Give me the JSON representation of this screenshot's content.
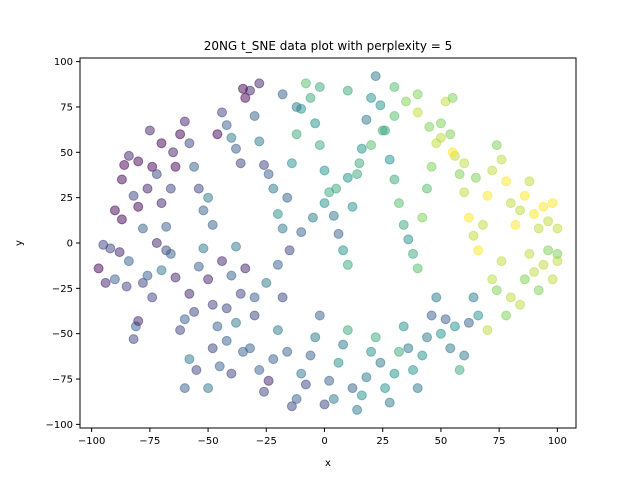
{
  "chart_data": {
    "type": "scatter",
    "title": "20NG t_SNE data plot with perplexity = 5",
    "xlabel": "x",
    "ylabel": "y",
    "xlim": [
      -105,
      108
    ],
    "ylim": [
      -102,
      102
    ],
    "xticks": [
      -100,
      -75,
      -50,
      -25,
      0,
      25,
      50,
      75,
      100
    ],
    "yticks": [
      -100,
      -75,
      -50,
      -25,
      0,
      25,
      50,
      75,
      100
    ],
    "xtick_labels": [
      "−100",
      "−75",
      "−50",
      "−25",
      "0",
      "25",
      "50",
      "75",
      "100"
    ],
    "ytick_labels": [
      "−100",
      "−75",
      "−50",
      "−25",
      "0",
      "25",
      "50",
      "75",
      "100"
    ],
    "grid": false,
    "colormap": "viridis",
    "marker_alpha": 0.5,
    "colors": {
      "viridis_stops": [
        "#440154",
        "#3b528b",
        "#21918c",
        "#5ec962",
        "#fde725"
      ]
    },
    "points": [
      [
        -97,
        -14,
        0.0
      ],
      [
        -94,
        -22,
        0.1
      ],
      [
        -92,
        -3,
        0.2
      ],
      [
        -90,
        -20,
        0.3
      ],
      [
        -88,
        -5,
        0.1
      ],
      [
        -87,
        13,
        0.0
      ],
      [
        -85,
        -24,
        0.2
      ],
      [
        -84,
        -10,
        0.3
      ],
      [
        -82,
        -53,
        0.2
      ],
      [
        -81,
        -46,
        0.3
      ],
      [
        -80,
        -43,
        0.1
      ],
      [
        -78,
        -22,
        0.2
      ],
      [
        -76,
        -18,
        0.3
      ],
      [
        -74,
        -30,
        0.2
      ],
      [
        -72,
        0,
        0.1
      ],
      [
        -70,
        -15,
        0.4
      ],
      [
        -68,
        -4,
        0.2
      ],
      [
        -66,
        -6,
        0.3
      ],
      [
        -64,
        -19,
        0.1
      ],
      [
        -62,
        -48,
        0.2
      ],
      [
        -60,
        -42,
        0.3
      ],
      [
        -58,
        -28,
        0.1
      ],
      [
        -56,
        -38,
        0.2
      ],
      [
        -54,
        -13,
        0.3
      ],
      [
        -52,
        -3,
        0.4
      ],
      [
        -50,
        -20,
        0.1
      ],
      [
        -48,
        -34,
        0.2
      ],
      [
        -46,
        -46,
        0.3
      ],
      [
        -44,
        -10,
        0.1
      ],
      [
        -42,
        -36,
        0.2
      ],
      [
        -40,
        -18,
        0.3
      ],
      [
        -38,
        -2,
        0.4
      ],
      [
        -36,
        -28,
        0.2
      ],
      [
        -34,
        -14,
        0.1
      ],
      [
        -32,
        -58,
        0.3
      ],
      [
        -30,
        -40,
        0.2
      ],
      [
        -28,
        -70,
        0.3
      ],
      [
        -26,
        -82,
        0.2
      ],
      [
        -24,
        -76,
        0.1
      ],
      [
        -22,
        -64,
        0.3
      ],
      [
        -20,
        -48,
        0.4
      ],
      [
        -18,
        -30,
        0.2
      ],
      [
        -16,
        -60,
        0.3
      ],
      [
        -14,
        -90,
        0.2
      ],
      [
        -12,
        -86,
        0.3
      ],
      [
        -10,
        -72,
        0.4
      ],
      [
        -8,
        -78,
        0.2
      ],
      [
        -6,
        -62,
        0.3
      ],
      [
        -4,
        -52,
        0.4
      ],
      [
        -2,
        -40,
        0.3
      ],
      [
        0,
        -89,
        0.2
      ],
      [
        2,
        -76,
        0.3
      ],
      [
        4,
        -86,
        0.4
      ],
      [
        6,
        -66,
        0.5
      ],
      [
        8,
        -56,
        0.4
      ],
      [
        10,
        -48,
        0.6
      ],
      [
        12,
        -80,
        0.3
      ],
      [
        14,
        -92,
        0.4
      ],
      [
        16,
        -84,
        0.5
      ],
      [
        18,
        -74,
        0.4
      ],
      [
        20,
        -60,
        0.5
      ],
      [
        22,
        -52,
        0.6
      ],
      [
        24,
        -66,
        0.4
      ],
      [
        26,
        -80,
        0.5
      ],
      [
        28,
        -88,
        0.4
      ],
      [
        30,
        -72,
        0.5
      ],
      [
        32,
        -60,
        0.6
      ],
      [
        34,
        -46,
        0.5
      ],
      [
        36,
        -58,
        0.4
      ],
      [
        38,
        -70,
        0.5
      ],
      [
        40,
        -80,
        0.4
      ],
      [
        42,
        -62,
        0.5
      ],
      [
        44,
        -52,
        0.4
      ],
      [
        46,
        -40,
        0.3
      ],
      [
        48,
        -30,
        0.4
      ],
      [
        50,
        -50,
        0.5
      ],
      [
        52,
        -42,
        0.3
      ],
      [
        54,
        -58,
        0.4
      ],
      [
        56,
        -46,
        0.5
      ],
      [
        58,
        -70,
        0.6
      ],
      [
        60,
        -62,
        0.4
      ],
      [
        62,
        -44,
        0.3
      ],
      [
        64,
        -30,
        0.4
      ],
      [
        66,
        -40,
        0.5
      ],
      [
        70,
        -48,
        0.9
      ],
      [
        72,
        -20,
        0.9
      ],
      [
        74,
        -26,
        0.8
      ],
      [
        76,
        -10,
        0.9
      ],
      [
        78,
        -40,
        0.8
      ],
      [
        80,
        -30,
        0.9
      ],
      [
        84,
        -34,
        0.9
      ],
      [
        86,
        -20,
        0.8
      ],
      [
        88,
        -6,
        0.9
      ],
      [
        90,
        -16,
        0.9
      ],
      [
        92,
        -26,
        0.8
      ],
      [
        94,
        -12,
        0.9
      ],
      [
        96,
        -4,
        0.8
      ],
      [
        98,
        -20,
        0.9
      ],
      [
        100,
        -10,
        0.9
      ],
      [
        100,
        -6,
        0.8
      ],
      [
        -95,
        -1,
        0.2
      ],
      [
        -90,
        18,
        0.0
      ],
      [
        -87,
        35,
        0.0
      ],
      [
        -86,
        43,
        0.0
      ],
      [
        -84,
        48,
        0.1
      ],
      [
        -82,
        26,
        0.2
      ],
      [
        -80,
        20,
        0.0
      ],
      [
        -78,
        8,
        0.3
      ],
      [
        -76,
        30,
        0.1
      ],
      [
        -74,
        42,
        0.0
      ],
      [
        -72,
        38,
        0.2
      ],
      [
        -70,
        22,
        0.1
      ],
      [
        -68,
        9,
        0.3
      ],
      [
        -66,
        30,
        0.2
      ],
      [
        -64,
        42,
        0.0
      ],
      [
        -62,
        60,
        0.0
      ],
      [
        -60,
        67,
        0.1
      ],
      [
        -58,
        55,
        0.2
      ],
      [
        -56,
        42,
        0.3
      ],
      [
        -54,
        30,
        0.2
      ],
      [
        -52,
        18,
        0.3
      ],
      [
        -50,
        25,
        0.4
      ],
      [
        -48,
        10,
        0.3
      ],
      [
        -46,
        60,
        0.0
      ],
      [
        -44,
        72,
        0.2
      ],
      [
        -42,
        65,
        0.3
      ],
      [
        -40,
        58,
        0.4
      ],
      [
        -38,
        52,
        0.3
      ],
      [
        -36,
        44,
        0.2
      ],
      [
        -34,
        80,
        0.0
      ],
      [
        -32,
        84,
        0.1
      ],
      [
        -30,
        70,
        0.3
      ],
      [
        -28,
        56,
        0.4
      ],
      [
        -26,
        43,
        0.2
      ],
      [
        -24,
        38,
        0.3
      ],
      [
        -22,
        30,
        0.4
      ],
      [
        -20,
        16,
        0.5
      ],
      [
        -18,
        8,
        0.4
      ],
      [
        -16,
        25,
        0.3
      ],
      [
        -14,
        44,
        0.5
      ],
      [
        -12,
        60,
        0.6
      ],
      [
        -10,
        74,
        0.5
      ],
      [
        -8,
        88,
        0.7
      ],
      [
        -6,
        80,
        0.6
      ],
      [
        -4,
        66,
        0.5
      ],
      [
        -2,
        54,
        0.6
      ],
      [
        0,
        40,
        0.5
      ],
      [
        2,
        28,
        0.6
      ],
      [
        4,
        15,
        0.4
      ],
      [
        6,
        5,
        0.3
      ],
      [
        8,
        -4,
        0.5
      ],
      [
        10,
        -12,
        0.6
      ],
      [
        12,
        20,
        0.5
      ],
      [
        14,
        38,
        0.6
      ],
      [
        16,
        52,
        0.5
      ],
      [
        18,
        68,
        0.4
      ],
      [
        20,
        80,
        0.5
      ],
      [
        22,
        92,
        0.4
      ],
      [
        24,
        76,
        0.5
      ],
      [
        26,
        62,
        0.6
      ],
      [
        28,
        46,
        0.5
      ],
      [
        30,
        35,
        0.6
      ],
      [
        32,
        22,
        0.7
      ],
      [
        34,
        10,
        0.6
      ],
      [
        36,
        2,
        0.5
      ],
      [
        38,
        -6,
        0.6
      ],
      [
        40,
        -14,
        0.7
      ],
      [
        42,
        14,
        0.8
      ],
      [
        44,
        30,
        0.7
      ],
      [
        46,
        42,
        0.8
      ],
      [
        48,
        55,
        0.9
      ],
      [
        50,
        66,
        0.8
      ],
      [
        52,
        78,
        0.9
      ],
      [
        54,
        60,
        0.8
      ],
      [
        56,
        48,
        0.9
      ],
      [
        58,
        38,
        0.8
      ],
      [
        60,
        28,
        0.9
      ],
      [
        62,
        14,
        1.0
      ],
      [
        64,
        4,
        0.9
      ],
      [
        66,
        -4,
        1.0
      ],
      [
        68,
        10,
        0.9
      ],
      [
        70,
        26,
        1.0
      ],
      [
        72,
        40,
        0.9
      ],
      [
        74,
        54,
        0.8
      ],
      [
        76,
        46,
        0.9
      ],
      [
        78,
        34,
        1.0
      ],
      [
        80,
        22,
        0.9
      ],
      [
        82,
        10,
        1.0
      ],
      [
        84,
        18,
        0.9
      ],
      [
        86,
        26,
        1.0
      ],
      [
        88,
        34,
        0.9
      ],
      [
        90,
        16,
        1.0
      ],
      [
        92,
        8,
        0.9
      ],
      [
        94,
        20,
        1.0
      ],
      [
        96,
        12,
        0.9
      ],
      [
        98,
        22,
        1.0
      ],
      [
        100,
        8,
        0.9
      ],
      [
        -60,
        -80,
        0.3
      ],
      [
        -55,
        -70,
        0.2
      ],
      [
        -50,
        -80,
        0.4
      ],
      [
        -45,
        -68,
        0.3
      ],
      [
        -40,
        -72,
        0.2
      ],
      [
        -35,
        -60,
        0.3
      ],
      [
        -58,
        -64,
        0.4
      ],
      [
        -48,
        -58,
        0.2
      ],
      [
        -42,
        -54,
        0.3
      ],
      [
        -38,
        -44,
        0.4
      ],
      [
        -30,
        -30,
        0.3
      ],
      [
        -25,
        -22,
        0.4
      ],
      [
        -20,
        -12,
        0.3
      ],
      [
        -15,
        -4,
        0.2
      ],
      [
        -10,
        6,
        0.3
      ],
      [
        -5,
        14,
        0.4
      ],
      [
        0,
        22,
        0.5
      ],
      [
        5,
        30,
        0.6
      ],
      [
        10,
        36,
        0.5
      ],
      [
        15,
        44,
        0.6
      ],
      [
        20,
        54,
        0.7
      ],
      [
        25,
        62,
        0.6
      ],
      [
        30,
        70,
        0.7
      ],
      [
        35,
        78,
        0.8
      ],
      [
        40,
        72,
        0.9
      ],
      [
        45,
        64,
        0.8
      ],
      [
        50,
        58,
        0.9
      ],
      [
        55,
        50,
        1.0
      ],
      [
        60,
        44,
        0.9
      ],
      [
        65,
        36,
        0.8
      ],
      [
        -70,
        55,
        0.0
      ],
      [
        -65,
        50,
        0.1
      ],
      [
        -75,
        62,
        0.1
      ],
      [
        -80,
        45,
        0.0
      ],
      [
        -35,
        85,
        0.0
      ],
      [
        -28,
        88,
        0.1
      ],
      [
        -18,
        82,
        0.3
      ],
      [
        -12,
        75,
        0.4
      ],
      [
        -2,
        86,
        0.6
      ],
      [
        10,
        84,
        0.6
      ],
      [
        30,
        86,
        0.7
      ],
      [
        40,
        82,
        0.8
      ],
      [
        55,
        80,
        0.8
      ]
    ]
  }
}
